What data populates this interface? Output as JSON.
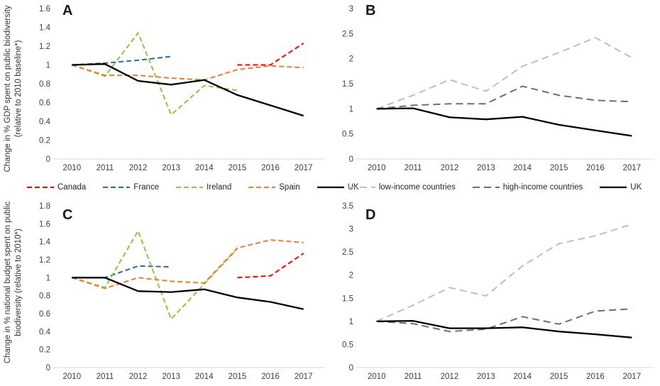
{
  "colors": {
    "background": "#ffffff",
    "axis_line": "#d9d9d9",
    "tick_text": "#404040",
    "panel_letter": "#1a1a1a",
    "canada_red": "#ff0000",
    "france_blue": "#31689b",
    "ireland_green": "#8dc63f",
    "spain_orange": "#ed7d31",
    "uk_black": "#000000",
    "low_income_gray": "#bfbfbf",
    "high_income_gray": "#6e6e6e"
  },
  "chart_data": [
    {
      "panel_label": "A",
      "type": "line",
      "title": "",
      "ylabel": "Change in % GDP spent on public biodiversity (relative to 2010 baseline*)",
      "xlabel": "",
      "x_labels": [
        "2010",
        "2011",
        "2012",
        "2013",
        "2014",
        "2015",
        "2016",
        "2017"
      ],
      "ylim": [
        0,
        1.6
      ],
      "yticks": [
        "0",
        "0.2",
        "0.4",
        "0.6",
        "0.8",
        "1",
        "1.2",
        "1.4",
        "1.6"
      ],
      "grid": "off",
      "legend": "bottom",
      "series": [
        {
          "name": "Canada",
          "color": "#ff0000",
          "dash": "7 4",
          "values": [
            null,
            null,
            null,
            null,
            null,
            1.0,
            1.0,
            1.23
          ]
        },
        {
          "name": "France",
          "color": "#31689b",
          "dash": "7 4",
          "values": [
            1.0,
            1.02,
            1.05,
            1.09,
            null,
            null,
            null,
            null
          ]
        },
        {
          "name": "Ireland",
          "color": "#8dc63f",
          "dash": "7 4",
          "values": [
            1.0,
            0.88,
            1.34,
            0.47,
            0.78,
            0.73,
            null,
            null
          ]
        },
        {
          "name": "Spain",
          "color": "#ed7d31",
          "dash": "7 4",
          "values": [
            1.0,
            0.89,
            0.89,
            0.86,
            0.84,
            0.95,
            0.99,
            0.97
          ]
        },
        {
          "name": "UK",
          "color": "#000000",
          "dash": null,
          "values": [
            1.0,
            1.01,
            0.83,
            0.79,
            0.84,
            0.68,
            0.57,
            0.46
          ]
        }
      ]
    },
    {
      "panel_label": "B",
      "type": "line",
      "title": "",
      "ylabel": "",
      "xlabel": "",
      "x_labels": [
        "2010",
        "2011",
        "2012",
        "2013",
        "2014",
        "2015",
        "2016",
        "2017"
      ],
      "ylim": [
        0,
        3
      ],
      "yticks": [
        "0",
        "0.5",
        "1",
        "1.5",
        "2",
        "2.5",
        "3"
      ],
      "grid": "off",
      "legend": "bottom",
      "series": [
        {
          "name": "low-income countries",
          "color": "#bfbfbf",
          "dash": "10 6",
          "values": [
            1.0,
            1.27,
            1.58,
            1.35,
            1.85,
            2.12,
            2.42,
            2.02
          ]
        },
        {
          "name": "high-income countries",
          "color": "#6e6e6e",
          "dash": "10 6",
          "values": [
            1.0,
            1.07,
            1.1,
            1.1,
            1.45,
            1.27,
            1.17,
            1.14
          ]
        },
        {
          "name": "UK",
          "color": "#000000",
          "dash": null,
          "values": [
            1.0,
            1.01,
            0.83,
            0.79,
            0.84,
            0.68,
            0.57,
            0.46
          ]
        }
      ]
    },
    {
      "panel_label": "C",
      "type": "line",
      "title": "",
      "ylabel": "Change in % national budget spent on public biodiversity (relative to 2010*)",
      "xlabel": "",
      "x_labels": [
        "2010",
        "2011",
        "2012",
        "2013",
        "2014",
        "2015",
        "2016",
        "2017"
      ],
      "ylim": [
        0,
        1.8
      ],
      "yticks": [
        "0",
        "0.2",
        "0.4",
        "0.6",
        "0.8",
        "1",
        "1.2",
        "1.4",
        "1.6",
        "1.8"
      ],
      "grid": "off",
      "legend": "none",
      "series": [
        {
          "name": "Canada",
          "color": "#ff0000",
          "dash": "7 4",
          "values": [
            null,
            null,
            null,
            null,
            null,
            1.0,
            1.02,
            1.27
          ]
        },
        {
          "name": "France",
          "color": "#31689b",
          "dash": "7 4",
          "values": [
            1.0,
            1.0,
            1.13,
            1.12,
            null,
            null,
            null,
            null
          ]
        },
        {
          "name": "Ireland",
          "color": "#8dc63f",
          "dash": "7 4",
          "values": [
            1.0,
            0.89,
            1.52,
            0.54,
            0.93,
            1.32,
            null,
            null
          ]
        },
        {
          "name": "Spain",
          "color": "#ed7d31",
          "dash": "7 4",
          "values": [
            1.0,
            0.88,
            1.0,
            0.96,
            0.94,
            1.33,
            1.42,
            1.39
          ]
        },
        {
          "name": "UK",
          "color": "#000000",
          "dash": null,
          "values": [
            1.0,
            1.0,
            0.85,
            0.84,
            0.87,
            0.78,
            0.73,
            0.65
          ]
        }
      ]
    },
    {
      "panel_label": "D",
      "type": "line",
      "title": "",
      "ylabel": "",
      "xlabel": "",
      "x_labels": [
        "2010",
        "2011",
        "2012",
        "2013",
        "2014",
        "2015",
        "2016",
        "2017"
      ],
      "ylim": [
        0,
        3.5
      ],
      "yticks": [
        "0",
        "0.5",
        "1",
        "1.5",
        "2",
        "2.5",
        "3",
        "3.5"
      ],
      "grid": "off",
      "legend": "none",
      "series": [
        {
          "name": "low-income countries",
          "color": "#bfbfbf",
          "dash": "10 6",
          "values": [
            1.0,
            1.35,
            1.73,
            1.55,
            2.2,
            2.68,
            2.85,
            3.1
          ]
        },
        {
          "name": "high-income countries",
          "color": "#6e6e6e",
          "dash": "10 6",
          "values": [
            1.0,
            0.95,
            0.78,
            0.83,
            1.1,
            0.94,
            1.22,
            1.27
          ]
        },
        {
          "name": "UK",
          "color": "#000000",
          "dash": null,
          "values": [
            1.0,
            1.01,
            0.85,
            0.85,
            0.87,
            0.78,
            0.72,
            0.65
          ]
        }
      ]
    }
  ]
}
